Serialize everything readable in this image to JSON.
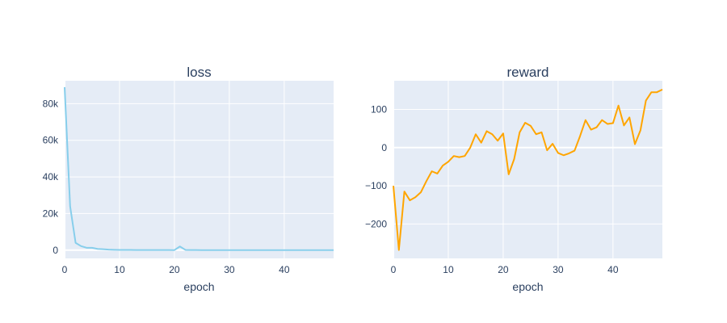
{
  "chart_data": [
    {
      "type": "line",
      "title": "loss",
      "xlabel": "epoch",
      "ylabel": "",
      "xlim": [
        0,
        49
      ],
      "ylim": [
        -4500,
        92500
      ],
      "xticks": [
        0,
        10,
        20,
        30,
        40
      ],
      "xtick_labels": [
        "0",
        "10",
        "20",
        "30",
        "40"
      ],
      "yticks": [
        0,
        20000,
        40000,
        60000,
        80000
      ],
      "ytick_labels": [
        "0",
        "20k",
        "40k",
        "60k",
        "80k"
      ],
      "grid": true,
      "line_color": "#87ceeb",
      "series": [
        {
          "x": [
            0,
            1,
            2,
            3,
            4,
            5,
            6,
            7,
            8,
            9,
            10,
            11,
            12,
            13,
            14,
            15,
            16,
            17,
            18,
            19,
            20,
            21,
            22,
            23,
            24,
            25,
            26,
            27,
            28,
            29,
            30,
            31,
            32,
            33,
            34,
            35,
            36,
            37,
            38,
            39,
            40,
            41,
            42,
            43,
            44,
            45,
            46,
            47,
            48,
            49
          ],
          "values": [
            89000,
            24000,
            4000,
            2200,
            1300,
            1300,
            700,
            500,
            300,
            200,
            150,
            150,
            120,
            100,
            100,
            80,
            80,
            60,
            60,
            50,
            40,
            2000,
            150,
            60,
            50,
            40,
            40,
            40,
            40,
            40,
            40,
            40,
            40,
            40,
            40,
            40,
            40,
            40,
            40,
            40,
            40,
            40,
            40,
            40,
            40,
            40,
            40,
            40,
            40,
            40
          ]
        }
      ]
    },
    {
      "type": "line",
      "title": "reward",
      "xlabel": "epoch",
      "ylabel": "",
      "xlim": [
        0,
        49
      ],
      "ylim": [
        -290,
        175
      ],
      "xticks": [
        0,
        10,
        20,
        30,
        40
      ],
      "xtick_labels": [
        "0",
        "10",
        "20",
        "30",
        "40"
      ],
      "yticks": [
        -200,
        -100,
        0,
        100
      ],
      "ytick_labels": [
        "−200",
        "−100",
        "0",
        "100"
      ],
      "grid": true,
      "line_color": "#ffa500",
      "series": [
        {
          "x": [
            0,
            1,
            2,
            3,
            4,
            5,
            6,
            7,
            8,
            9,
            10,
            11,
            12,
            13,
            14,
            15,
            16,
            17,
            18,
            19,
            20,
            21,
            22,
            23,
            24,
            25,
            26,
            27,
            28,
            29,
            30,
            31,
            32,
            33,
            34,
            35,
            36,
            37,
            38,
            39,
            40,
            41,
            42,
            43,
            44,
            45,
            46,
            47,
            48,
            49
          ],
          "values": [
            -100,
            -268,
            -115,
            -138,
            -130,
            -117,
            -88,
            -62,
            -68,
            -47,
            -37,
            -22,
            -25,
            -22,
            0,
            35,
            13,
            43,
            35,
            18,
            37,
            -70,
            -30,
            40,
            65,
            57,
            35,
            40,
            -7,
            10,
            -14,
            -20,
            -15,
            -8,
            30,
            72,
            47,
            53,
            72,
            62,
            64,
            110,
            58,
            79,
            9,
            45,
            123,
            145,
            145,
            152
          ]
        }
      ]
    }
  ]
}
